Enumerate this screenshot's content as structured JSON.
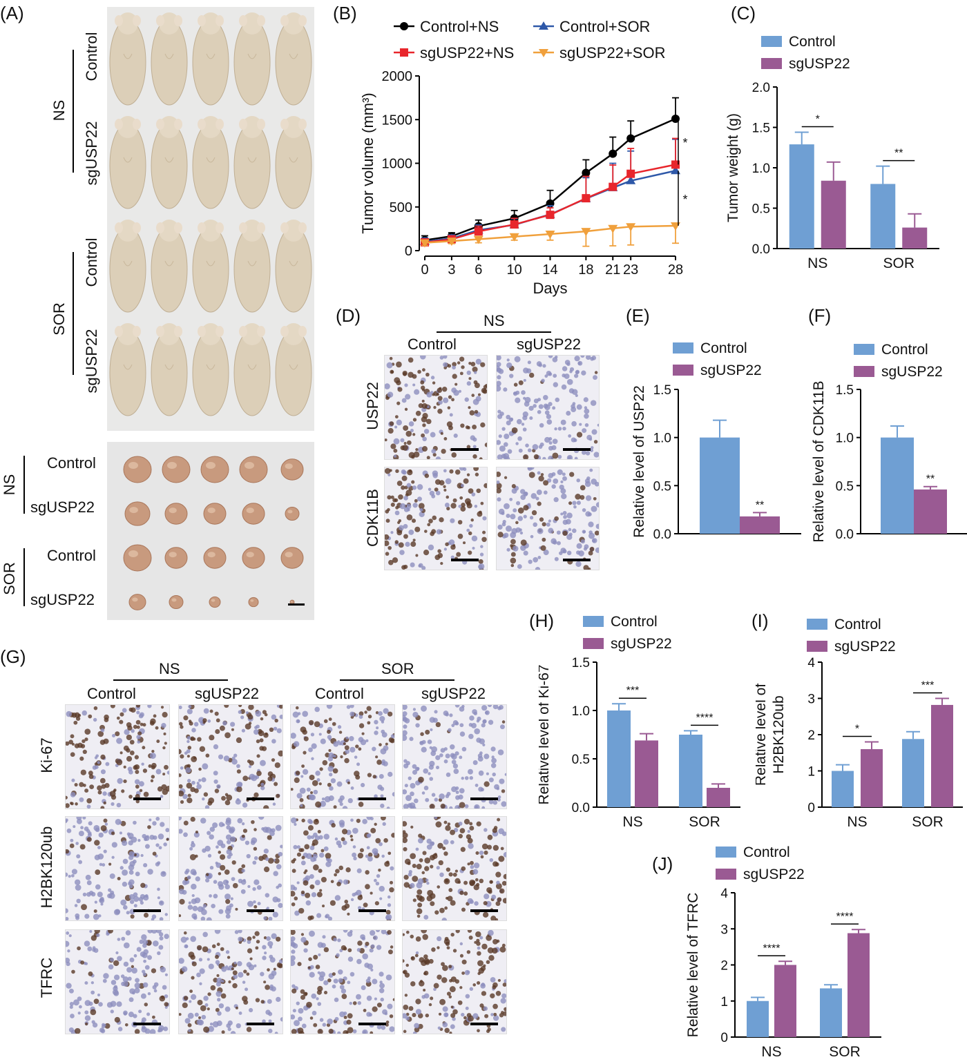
{
  "panels": {
    "A": {
      "label": "(A)",
      "mice_groups": [
        {
          "treatment": "NS",
          "subgroups": [
            "Control",
            "sgUSP22"
          ]
        },
        {
          "treatment": "SOR",
          "subgroups": [
            "Control",
            "sgUSP22"
          ]
        }
      ],
      "tumor_rows": [
        "Control",
        "sgUSP22",
        "Control",
        "sgUSP22"
      ],
      "tumor_groups": [
        "NS",
        "SOR"
      ]
    },
    "B": {
      "label": "(B)"
    },
    "C": {
      "label": "(C)"
    },
    "D": {
      "label": "(D)",
      "group": "NS",
      "columns": [
        "Control",
        "sgUSP22"
      ],
      "rows": [
        "USP22",
        "CDK11B"
      ]
    },
    "E": {
      "label": "(E)"
    },
    "F": {
      "label": "(F)"
    },
    "G": {
      "label": "(G)",
      "groups": [
        "NS",
        "SOR"
      ],
      "columns": [
        "Control",
        "sgUSP22",
        "Control",
        "sgUSP22"
      ],
      "rows": [
        "Ki-67",
        "H2BK120ub",
        "TFRC"
      ]
    },
    "H": {
      "label": "(H)"
    },
    "I": {
      "label": "(I)"
    },
    "J": {
      "label": "(J)"
    }
  },
  "colors": {
    "control": "#6f9fd3",
    "sgusp22": "#9a5a93",
    "line_control_ns": "#000000",
    "line_sg_ns": "#e8262c",
    "line_control_sor": "#2e58a8",
    "line_sg_sor": "#f0a03c",
    "mouse_skin": "#dccfb8",
    "photo_bg": "#ececec",
    "tumor": "#c89a7e",
    "ihc_brown": "#5a3a28",
    "ihc_blue": "#8d8fbe"
  },
  "chart_data": [
    {
      "id": "B",
      "type": "line",
      "xlabel": "Days",
      "ylabel": "Tumor volume (mm³)",
      "x": [
        0,
        3,
        6,
        10,
        14,
        18,
        21,
        23,
        28
      ],
      "xticks": [
        "0",
        "3",
        "6",
        "10",
        "14",
        "18",
        "21",
        "23",
        "28"
      ],
      "yticks": [
        "0",
        "500",
        "1000",
        "1500",
        "2000"
      ],
      "ylim": [
        0,
        2000
      ],
      "legend": "top",
      "series": [
        {
          "name": "Control+NS",
          "marker": "circle",
          "values": [
            120,
            165,
            280,
            370,
            540,
            890,
            1110,
            1285,
            1510
          ],
          "errors": [
            50,
            40,
            70,
            90,
            150,
            150,
            190,
            200,
            240
          ]
        },
        {
          "name": "Control+SOR",
          "marker": "triangle-up",
          "values": [
            105,
            140,
            235,
            295,
            415,
            595,
            720,
            800,
            915
          ],
          "errors": [
            40,
            40,
            60,
            70,
            100,
            240,
            280,
            340,
            360
          ]
        },
        {
          "name": "sgUSP22+NS",
          "marker": "square",
          "values": [
            95,
            130,
            220,
            300,
            410,
            600,
            730,
            880,
            985
          ],
          "errors": [
            40,
            40,
            60,
            70,
            80,
            250,
            250,
            290,
            300
          ]
        },
        {
          "name": "sgUSP22+SOR",
          "marker": "triangle-down",
          "values": [
            90,
            110,
            130,
            160,
            190,
            220,
            255,
            275,
            285
          ],
          "errors": [
            30,
            30,
            40,
            40,
            70,
            170,
            200,
            210,
            200
          ]
        }
      ],
      "annotations": [
        "*",
        "*"
      ]
    },
    {
      "id": "C",
      "type": "bar",
      "categories": [
        "NS",
        "SOR"
      ],
      "series": [
        {
          "name": "Control",
          "values": [
            1.29,
            0.8
          ],
          "errors": [
            0.15,
            0.22
          ]
        },
        {
          "name": "sgUSP22",
          "values": [
            0.84,
            0.26
          ],
          "errors": [
            0.23,
            0.17
          ]
        }
      ],
      "ylabel": "Tumor weight (g)",
      "yticks": [
        "0.0",
        "0.5",
        "1.0",
        "1.5",
        "2.0"
      ],
      "ylim": [
        0,
        2.0
      ],
      "significance": [
        "*",
        "**"
      ]
    },
    {
      "id": "E",
      "type": "bar",
      "categories": [
        ""
      ],
      "series": [
        {
          "name": "Control",
          "values": [
            1.0
          ],
          "errors": [
            0.18
          ]
        },
        {
          "name": "sgUSP22",
          "values": [
            0.18
          ],
          "errors": [
            0.04
          ]
        }
      ],
      "ylabel": "Relative level of USP22",
      "yticks": [
        "0.0",
        "0.5",
        "1.0",
        "1.5"
      ],
      "ylim": [
        0,
        1.5
      ],
      "significance": [
        "**"
      ]
    },
    {
      "id": "F",
      "type": "bar",
      "categories": [
        ""
      ],
      "series": [
        {
          "name": "Control",
          "values": [
            1.0
          ],
          "errors": [
            0.12
          ]
        },
        {
          "name": "sgUSP22",
          "values": [
            0.46
          ],
          "errors": [
            0.03
          ]
        }
      ],
      "ylabel": "Relative level of CDK11B",
      "yticks": [
        "0.0",
        "0.5",
        "1.0",
        "1.5"
      ],
      "ylim": [
        0,
        1.5
      ],
      "significance": [
        "**"
      ]
    },
    {
      "id": "H",
      "type": "bar",
      "categories": [
        "NS",
        "SOR"
      ],
      "series": [
        {
          "name": "Control",
          "values": [
            1.0,
            0.75
          ],
          "errors": [
            0.07,
            0.04
          ]
        },
        {
          "name": "sgUSP22",
          "values": [
            0.69,
            0.2
          ],
          "errors": [
            0.07,
            0.04
          ]
        }
      ],
      "ylabel": "Relative level of Ki-67",
      "yticks": [
        "0.0",
        "0.5",
        "1.0",
        "1.5"
      ],
      "ylim": [
        0,
        1.5
      ],
      "significance": [
        "***",
        "****"
      ]
    },
    {
      "id": "I",
      "type": "bar",
      "categories": [
        "NS",
        "SOR"
      ],
      "series": [
        {
          "name": "Control",
          "values": [
            1.0,
            1.88
          ],
          "errors": [
            0.17,
            0.2
          ]
        },
        {
          "name": "sgUSP22",
          "values": [
            1.6,
            2.82
          ],
          "errors": [
            0.2,
            0.18
          ]
        }
      ],
      "ylabel": [
        "Relative level of",
        "H2BK120ub"
      ],
      "yticks": [
        "0",
        "1",
        "2",
        "3",
        "4"
      ],
      "ylim": [
        0,
        4
      ],
      "significance": [
        "*",
        "***"
      ]
    },
    {
      "id": "J",
      "type": "bar",
      "categories": [
        "NS",
        "SOR"
      ],
      "series": [
        {
          "name": "Control",
          "values": [
            1.0,
            1.35
          ],
          "errors": [
            0.1,
            0.1
          ]
        },
        {
          "name": "sgUSP22",
          "values": [
            2.0,
            2.88
          ],
          "errors": [
            0.1,
            0.1
          ]
        }
      ],
      "ylabel": "Relative level of TFRC",
      "yticks": [
        "0",
        "1",
        "2",
        "3",
        "4"
      ],
      "ylim": [
        0,
        4
      ],
      "significance": [
        "****",
        "****"
      ]
    }
  ]
}
